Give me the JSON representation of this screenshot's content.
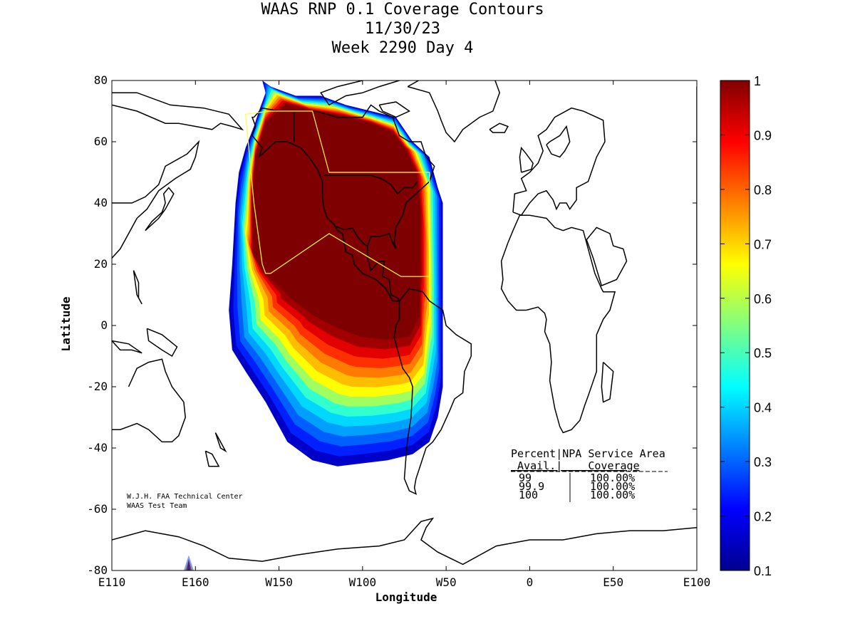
{
  "chart_data": {
    "type": "heatmap",
    "title": "WAAS RNP 0.1 Coverage Contours",
    "subtitle_date": "11/30/23",
    "subtitle_week": "Week 2290 Day 4",
    "xlabel": "Longitude",
    "ylabel": "Latitude",
    "xlim": [
      -250,
      100
    ],
    "ylim": [
      -80,
      80
    ],
    "x_ticks": [
      {
        "value": -250,
        "label": "E110"
      },
      {
        "value": -200,
        "label": "E160"
      },
      {
        "value": -150,
        "label": "W150"
      },
      {
        "value": -100,
        "label": "W100"
      },
      {
        "value": -50,
        "label": "W50"
      },
      {
        "value": 0,
        "label": "0"
      },
      {
        "value": 50,
        "label": "E50"
      },
      {
        "value": 100,
        "label": "E100"
      }
    ],
    "y_ticks": [
      80,
      60,
      40,
      20,
      0,
      -20,
      -40,
      -60,
      -80
    ],
    "colorbar": {
      "min": 0.1,
      "max": 1,
      "ticks": [
        "1",
        "0.9",
        "0.8",
        "0.7",
        "0.6",
        "0.5",
        "0.4",
        "0.3",
        "0.2",
        "0.1"
      ],
      "colors": [
        "#00008f",
        "#0000ff",
        "#0080ff",
        "#00ffff",
        "#80ff80",
        "#ffff00",
        "#ff8000",
        "#ff0000",
        "#800000"
      ]
    },
    "coverage_levels": [
      {
        "level": 1.0,
        "color": "#7f0000"
      },
      {
        "level": 0.93,
        "color": "#a00000"
      },
      {
        "level": 0.86,
        "color": "#e30000"
      },
      {
        "level": 0.8,
        "color": "#ff3000"
      },
      {
        "level": 0.73,
        "color": "#ff7a00"
      },
      {
        "level": 0.66,
        "color": "#ffbd00"
      },
      {
        "level": 0.6,
        "color": "#ffff00"
      },
      {
        "level": 0.53,
        "color": "#a0ff60"
      },
      {
        "level": 0.46,
        "color": "#30ffd0"
      },
      {
        "level": 0.4,
        "color": "#00d8ff"
      },
      {
        "level": 0.33,
        "color": "#00a0ff"
      },
      {
        "level": 0.26,
        "color": "#0060ff"
      },
      {
        "level": 0.2,
        "color": "#0020ff"
      },
      {
        "level": 0.13,
        "color": "#0000c8"
      }
    ]
  },
  "credit": {
    "line1": "W.J.H. FAA Technical Center",
    "line2": "WAAS Test Team"
  },
  "stats_table": {
    "header1": "Percent|NPA Service Area",
    "header2": " Avail.|    Coverage",
    "rows": [
      {
        "avail": "99",
        "coverage": "100.00%"
      },
      {
        "avail": "99.9",
        "coverage": "100.00%"
      },
      {
        "avail": "100",
        "coverage": "100.00%"
      }
    ]
  }
}
